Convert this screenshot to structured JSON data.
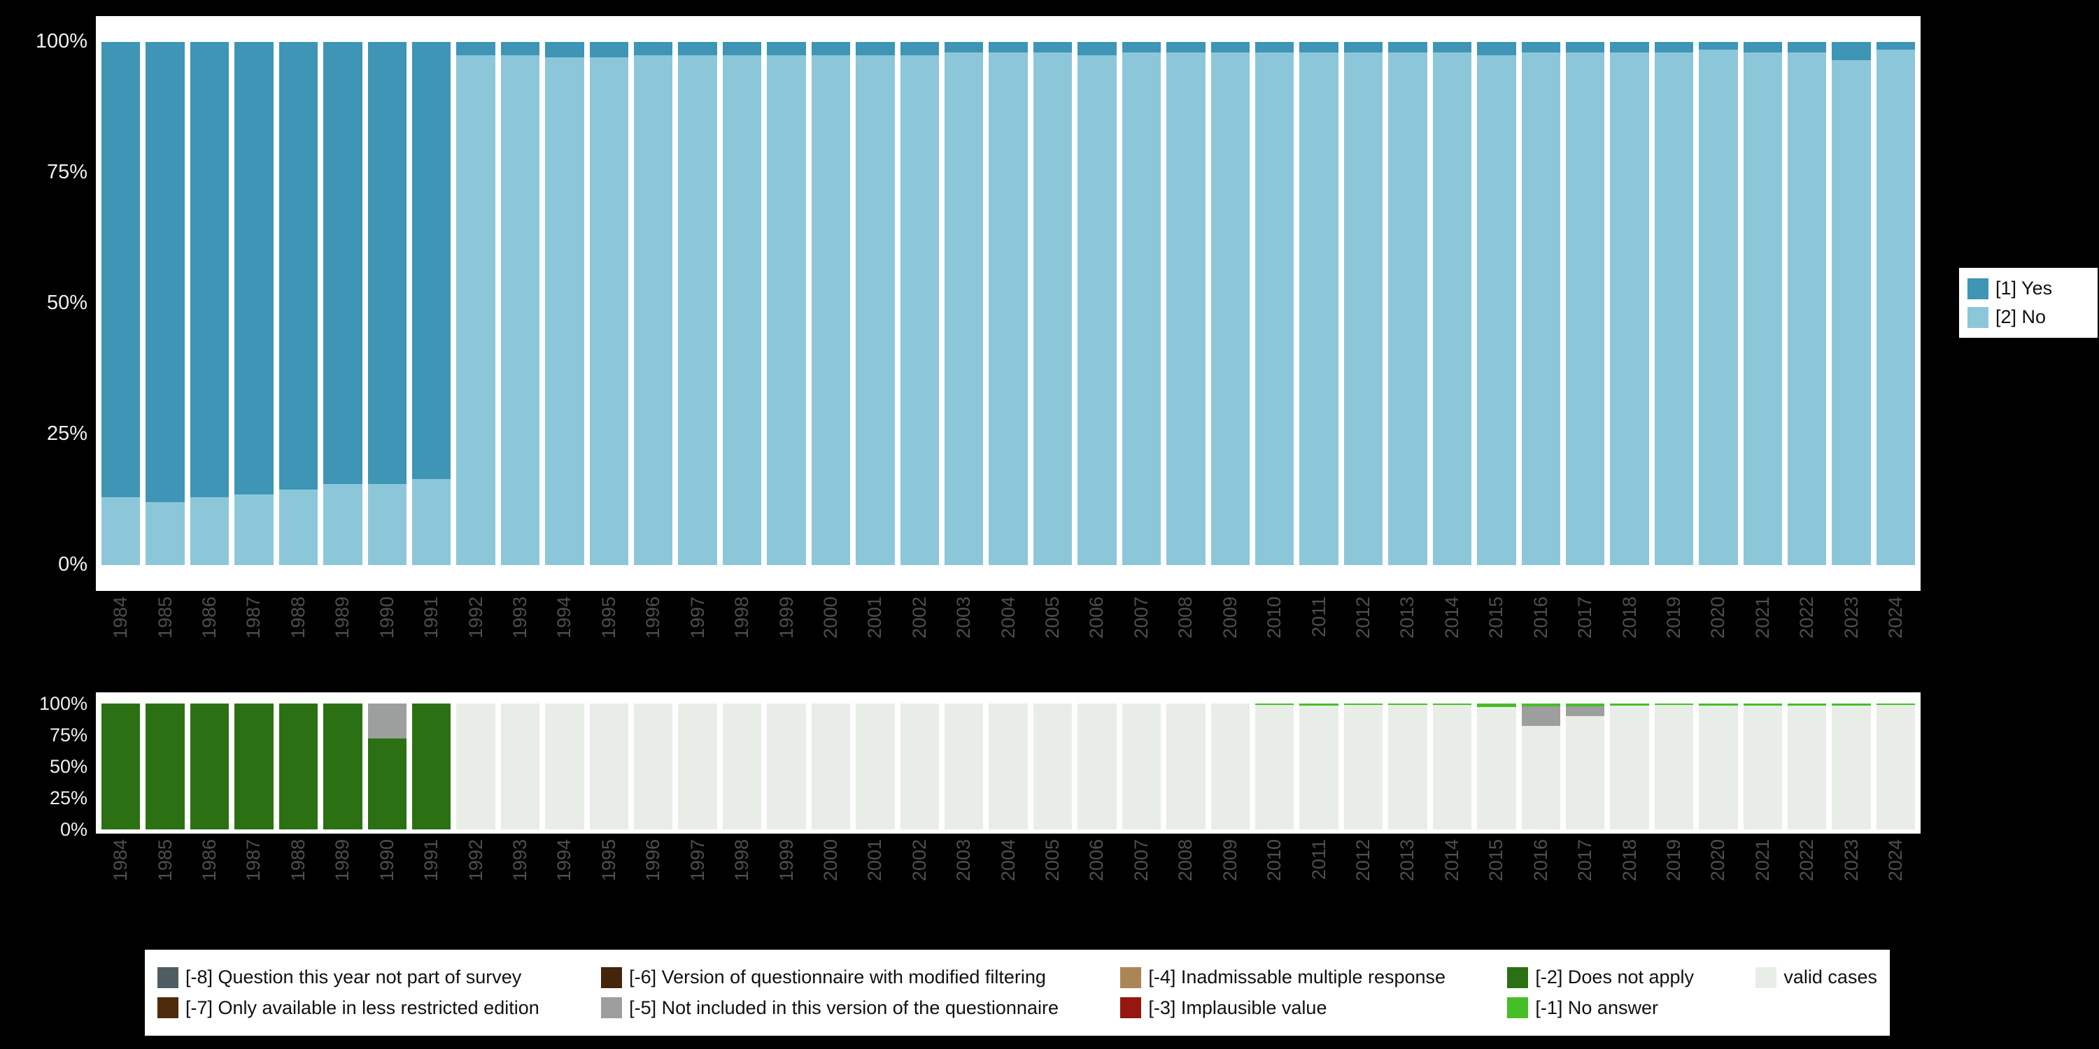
{
  "page": {
    "background": "#000000",
    "plot_background": "#ffffff"
  },
  "axes": {
    "top_y_ticks": [
      "100%",
      "75%",
      "50%",
      "25%",
      "0%"
    ],
    "bottom_y_ticks": [
      "100%",
      "75%",
      "50%",
      "25%",
      "0%"
    ]
  },
  "chart_data": [
    {
      "id": "responses",
      "type": "bar",
      "stacked": true,
      "unit": "percent",
      "ylim": [
        0,
        100
      ],
      "grid": false,
      "legend_position": "right",
      "years": [
        1984,
        1985,
        1986,
        1987,
        1988,
        1989,
        1990,
        1991,
        1992,
        1993,
        1994,
        1995,
        1996,
        1997,
        1998,
        1999,
        2000,
        2001,
        2002,
        2003,
        2004,
        2005,
        2006,
        2007,
        2008,
        2009,
        2010,
        2011,
        2012,
        2013,
        2014,
        2015,
        2016,
        2017,
        2018,
        2019,
        2020,
        2021,
        2022,
        2023,
        2024
      ],
      "series": [
        {
          "name": "[1] Yes",
          "color": "#3e95b5",
          "values": [
            87,
            88,
            87,
            86.5,
            85.5,
            84.5,
            84.5,
            83.5,
            2.5,
            2.5,
            3,
            3,
            2.5,
            2.5,
            2.5,
            2.5,
            2.5,
            2.5,
            2.5,
            2,
            2,
            2,
            2.5,
            2,
            2,
            2,
            2,
            2,
            2,
            2,
            2,
            2.5,
            2,
            2,
            2,
            2,
            1.5,
            2,
            2,
            3.5,
            1.5
          ]
        },
        {
          "name": "[2] No",
          "color": "#8cc7d9",
          "values": [
            13,
            12,
            13,
            13.5,
            14.5,
            15.5,
            15.5,
            16.5,
            97.5,
            97.5,
            97,
            97,
            97.5,
            97.5,
            97.5,
            97.5,
            97.5,
            97.5,
            97.5,
            98,
            98,
            98,
            97.5,
            98,
            98,
            98,
            98,
            98,
            98,
            98,
            98,
            97.5,
            98,
            98,
            98,
            98,
            98.5,
            98,
            98,
            96.5,
            98.5
          ]
        }
      ],
      "stack_bottom_to_top": [
        "[2] No",
        "[1] Yes"
      ]
    },
    {
      "id": "missings",
      "type": "bar",
      "stacked": true,
      "unit": "percent",
      "ylim": [
        0,
        100
      ],
      "grid": false,
      "legend_position": "bottom",
      "years": [
        1984,
        1985,
        1986,
        1987,
        1988,
        1989,
        1990,
        1991,
        1992,
        1993,
        1994,
        1995,
        1996,
        1997,
        1998,
        1999,
        2000,
        2001,
        2002,
        2003,
        2004,
        2005,
        2006,
        2007,
        2008,
        2009,
        2010,
        2011,
        2012,
        2013,
        2014,
        2015,
        2016,
        2017,
        2018,
        2019,
        2020,
        2021,
        2022,
        2023,
        2024
      ],
      "series": [
        {
          "name": "valid cases",
          "color": "#e9ede7",
          "values": [
            0,
            0,
            0,
            0,
            0,
            0,
            0,
            0,
            100,
            100,
            100,
            100,
            100,
            100,
            100,
            100,
            100,
            100,
            100,
            100,
            100,
            100,
            100,
            100,
            100,
            100,
            99,
            98.5,
            99,
            99,
            99,
            97,
            82,
            90,
            98.5,
            99,
            98.5,
            98.5,
            98.5,
            98.5,
            99
          ]
        },
        {
          "name": "[-2] Does not apply",
          "color": "#2b7113",
          "values": [
            100,
            100,
            100,
            100,
            100,
            100,
            72,
            100,
            0,
            0,
            0,
            0,
            0,
            0,
            0,
            0,
            0,
            0,
            0,
            0,
            0,
            0,
            0,
            0,
            0,
            0,
            0,
            0,
            0,
            0,
            0,
            0,
            0,
            0,
            0,
            0,
            0,
            0,
            0,
            0,
            0
          ]
        },
        {
          "name": "[-5] Not included in this version of the questionnaire",
          "color": "#9c9f9d",
          "values": [
            0,
            0,
            0,
            0,
            0,
            0,
            28,
            0,
            0,
            0,
            0,
            0,
            0,
            0,
            0,
            0,
            0,
            0,
            0,
            0,
            0,
            0,
            0,
            0,
            0,
            0,
            0,
            0,
            0,
            0,
            0,
            0,
            16,
            8,
            0,
            0,
            0,
            0,
            0,
            0,
            0
          ]
        },
        {
          "name": "[-1] No answer",
          "color": "#46be27",
          "values": [
            0,
            0,
            0,
            0,
            0,
            0,
            0,
            0,
            0,
            0,
            0,
            0,
            0,
            0,
            0,
            0,
            0,
            0,
            0,
            0,
            0,
            0,
            0,
            0,
            0,
            0,
            1,
            1.5,
            1,
            1,
            1,
            3,
            2,
            2,
            1.5,
            1,
            1.5,
            1.5,
            1.5,
            1.5,
            1
          ]
        }
      ],
      "stack_bottom_to_top": [
        "valid cases",
        "[-2] Does not apply",
        "[-5] Not included in this version of the questionnaire",
        "[-1] No answer"
      ]
    }
  ],
  "legend_main": {
    "items": [
      {
        "label": "[1] Yes",
        "color": "#3e95b5"
      },
      {
        "label": "[2] No",
        "color": "#8cc7d9"
      }
    ]
  },
  "legend_missing": {
    "items": [
      {
        "label": "[-8] Question this year not part of survey",
        "color": "#4f5d63"
      },
      {
        "label": "[-7] Only available in less restricted edition",
        "color": "#4e2b0b"
      },
      {
        "label": "[-6] Version of questionnaire with modified filtering",
        "color": "#42250b"
      },
      {
        "label": "[-5] Not included in this version of the questionnaire",
        "color": "#9c9f9d"
      },
      {
        "label": "[-4] Inadmissable multiple response",
        "color": "#aa8556"
      },
      {
        "label": "[-3] Implausible value",
        "color": "#941710"
      },
      {
        "label": "[-2] Does not apply",
        "color": "#2b7113"
      },
      {
        "label": "[-1] No answer",
        "color": "#46be27"
      },
      {
        "label": "valid cases",
        "color": "#e9ede7"
      }
    ]
  }
}
